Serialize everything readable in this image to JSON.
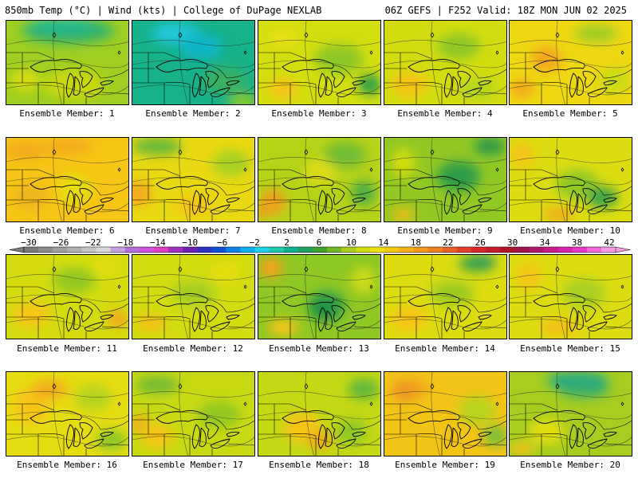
{
  "header": {
    "left": "850mb Temp (°C) | Wind (kts) | College of DuPage NEXLAB",
    "right": "06Z GEFS | F252 Valid: 18Z MON JUN 02 2025"
  },
  "label_prefix": "Ensemble Member: ",
  "members": [
    {
      "n": "1",
      "base": "#9ecf22",
      "blobs": [
        [
          "#36b36b",
          0.5,
          0.12,
          0.75,
          0.3
        ],
        [
          "#1fb79a",
          0.45,
          0.05,
          0.55,
          0.15
        ],
        [
          "#c9d810",
          0.55,
          0.75,
          0.5,
          0.35
        ],
        [
          "#d8dc10",
          0.15,
          0.7,
          0.25,
          0.25
        ]
      ]
    },
    {
      "n": "2",
      "base": "#17b18a",
      "blobs": [
        [
          "#23c7d9",
          0.35,
          0.15,
          0.4,
          0.25
        ],
        [
          "#10b6c8",
          0.55,
          0.3,
          0.35,
          0.3
        ],
        [
          "#3ab060",
          0.75,
          0.7,
          0.35,
          0.3
        ],
        [
          "#8cca28",
          0.9,
          0.95,
          0.25,
          0.2
        ]
      ]
    },
    {
      "n": "3",
      "base": "#d3de0f",
      "blobs": [
        [
          "#8ec826",
          0.65,
          0.45,
          0.4,
          0.35
        ],
        [
          "#2e9f4a",
          0.9,
          0.75,
          0.18,
          0.25
        ],
        [
          "#f6c514",
          0.2,
          0.8,
          0.25,
          0.25
        ],
        [
          "#e9e012",
          0.2,
          0.2,
          0.25,
          0.2
        ]
      ]
    },
    {
      "n": "4",
      "base": "#d2dc10",
      "blobs": [
        [
          "#8ec826",
          0.6,
          0.3,
          0.35,
          0.3
        ],
        [
          "#f6c514",
          0.2,
          0.75,
          0.3,
          0.3
        ],
        [
          "#b6d51a",
          0.75,
          0.8,
          0.3,
          0.25
        ]
      ]
    },
    {
      "n": "5",
      "base": "#eed812",
      "blobs": [
        [
          "#f3a81e",
          0.3,
          0.45,
          0.25,
          0.3
        ],
        [
          "#f2a61d",
          0.1,
          0.8,
          0.2,
          0.2
        ],
        [
          "#9ccc26",
          0.7,
          0.15,
          0.35,
          0.2
        ],
        [
          "#c8da14",
          0.85,
          0.7,
          0.25,
          0.3
        ]
      ]
    },
    {
      "n": "6",
      "base": "#f6c515",
      "blobs": [
        [
          "#f3a81d",
          0.15,
          0.15,
          0.35,
          0.2
        ],
        [
          "#f2a41e",
          0.5,
          0.1,
          0.4,
          0.15
        ],
        [
          "#e6dc11",
          0.55,
          0.6,
          0.3,
          0.35
        ],
        [
          "#f0b51a",
          0.2,
          0.7,
          0.3,
          0.3
        ]
      ]
    },
    {
      "n": "7",
      "base": "#e8d912",
      "blobs": [
        [
          "#62b73c",
          0.2,
          0.1,
          0.4,
          0.2
        ],
        [
          "#f3a91e",
          0.05,
          0.65,
          0.2,
          0.3
        ],
        [
          "#a6cf22",
          0.8,
          0.3,
          0.3,
          0.3
        ],
        [
          "#f6c515",
          0.5,
          0.8,
          0.3,
          0.25
        ]
      ]
    },
    {
      "n": "8",
      "base": "#b6d318",
      "blobs": [
        [
          "#f2a01f",
          0.12,
          0.75,
          0.2,
          0.3
        ],
        [
          "#ee9324",
          0.02,
          0.88,
          0.1,
          0.12
        ],
        [
          "#72bc35",
          0.7,
          0.2,
          0.35,
          0.3
        ],
        [
          "#4faf45",
          0.85,
          0.65,
          0.2,
          0.3
        ],
        [
          "#dcdc12",
          0.5,
          0.4,
          0.25,
          0.3
        ]
      ]
    },
    {
      "n": "9",
      "base": "#92c824",
      "blobs": [
        [
          "#2e9c48",
          0.6,
          0.45,
          0.35,
          0.35
        ],
        [
          "#2a9747",
          0.85,
          0.1,
          0.25,
          0.2
        ],
        [
          "#d2dc11",
          0.15,
          0.3,
          0.2,
          0.35
        ],
        [
          "#f4bd16",
          0.15,
          0.9,
          0.2,
          0.15
        ]
      ]
    },
    {
      "n": "10",
      "base": "#dcdc11",
      "blobs": [
        [
          "#8ec826",
          0.55,
          0.55,
          0.35,
          0.35
        ],
        [
          "#3ea44a",
          0.75,
          0.7,
          0.25,
          0.25
        ],
        [
          "#f4c416",
          0.1,
          0.2,
          0.2,
          0.3
        ],
        [
          "#f2a81d",
          0.4,
          0.9,
          0.25,
          0.15
        ]
      ]
    },
    {
      "n": "11",
      "base": "#d4dc10",
      "blobs": [
        [
          "#92c824",
          0.55,
          0.3,
          0.35,
          0.3
        ],
        [
          "#f6c515",
          0.2,
          0.7,
          0.3,
          0.3
        ],
        [
          "#f2a31e",
          0.9,
          0.75,
          0.15,
          0.2
        ],
        [
          "#e4dd11",
          0.8,
          0.15,
          0.2,
          0.2
        ]
      ]
    },
    {
      "n": "12",
      "base": "#d2dc11",
      "blobs": [
        [
          "#a4cd20",
          0.5,
          0.45,
          0.35,
          0.3
        ],
        [
          "#f4bd16",
          0.15,
          0.8,
          0.25,
          0.2
        ],
        [
          "#e6dd10",
          0.75,
          0.2,
          0.25,
          0.25
        ]
      ]
    },
    {
      "n": "13",
      "base": "#8fc825",
      "blobs": [
        [
          "#2e9c48",
          0.55,
          0.6,
          0.3,
          0.35
        ],
        [
          "#1f8f45",
          0.5,
          0.65,
          0.18,
          0.2
        ],
        [
          "#f2a21e",
          0.1,
          0.15,
          0.2,
          0.25
        ],
        [
          "#f6c515",
          0.2,
          0.85,
          0.25,
          0.2
        ],
        [
          "#cfdb12",
          0.85,
          0.3,
          0.2,
          0.3
        ]
      ]
    },
    {
      "n": "14",
      "base": "#dcdc11",
      "blobs": [
        [
          "#3aa44a",
          0.75,
          0.1,
          0.3,
          0.2
        ],
        [
          "#2c9a62",
          0.8,
          0.05,
          0.2,
          0.1
        ],
        [
          "#9ccb24",
          0.55,
          0.45,
          0.35,
          0.3
        ],
        [
          "#f6c515",
          0.2,
          0.75,
          0.3,
          0.3
        ]
      ]
    },
    {
      "n": "15",
      "base": "#dcdc11",
      "blobs": [
        [
          "#a8cf20",
          0.6,
          0.45,
          0.35,
          0.35
        ],
        [
          "#f6c515",
          0.15,
          0.25,
          0.2,
          0.3
        ],
        [
          "#f4c015",
          0.4,
          0.85,
          0.3,
          0.2
        ]
      ]
    },
    {
      "n": "16",
      "base": "#e6dc12",
      "blobs": [
        [
          "#f6c515",
          0.2,
          0.4,
          0.3,
          0.4
        ],
        [
          "#f2a81d",
          0.35,
          0.2,
          0.3,
          0.2
        ],
        [
          "#8ec826",
          0.85,
          0.8,
          0.25,
          0.25
        ],
        [
          "#b6d31a",
          0.7,
          0.3,
          0.3,
          0.3
        ]
      ]
    },
    {
      "n": "17",
      "base": "#c8d913",
      "blobs": [
        [
          "#6fba38",
          0.2,
          0.15,
          0.35,
          0.2
        ],
        [
          "#f6c515",
          0.2,
          0.75,
          0.25,
          0.3
        ],
        [
          "#f2a81d",
          0.05,
          0.6,
          0.12,
          0.2
        ],
        [
          "#92c824",
          0.7,
          0.5,
          0.35,
          0.3
        ]
      ]
    },
    {
      "n": "18",
      "base": "#c4d814",
      "blobs": [
        [
          "#62b63e",
          0.85,
          0.2,
          0.25,
          0.25
        ],
        [
          "#f6c515",
          0.35,
          0.65,
          0.3,
          0.35
        ],
        [
          "#f2a81d",
          0.5,
          0.8,
          0.2,
          0.2
        ],
        [
          "#8fc826",
          0.75,
          0.7,
          0.25,
          0.3
        ]
      ]
    },
    {
      "n": "19",
      "base": "#f2c416",
      "blobs": [
        [
          "#f1a01f",
          0.2,
          0.2,
          0.3,
          0.25
        ],
        [
          "#ec8d25",
          0.15,
          0.25,
          0.15,
          0.15
        ],
        [
          "#b8d41a",
          0.75,
          0.45,
          0.3,
          0.35
        ],
        [
          "#7bbf34",
          0.9,
          0.75,
          0.2,
          0.25
        ]
      ]
    },
    {
      "n": "20",
      "base": "#a6cd20",
      "blobs": [
        [
          "#1da98a",
          0.55,
          0.1,
          0.5,
          0.2
        ],
        [
          "#35ad70",
          0.6,
          0.2,
          0.4,
          0.2
        ],
        [
          "#e4dd10",
          0.3,
          0.7,
          0.3,
          0.3
        ],
        [
          "#f4c016",
          0.1,
          0.9,
          0.2,
          0.15
        ]
      ]
    }
  ],
  "colorbar": {
    "labels": [
      "−30",
      "−26",
      "−22",
      "−18",
      "−14",
      "−10",
      "−6",
      "−2",
      "2",
      "6",
      "10",
      "14",
      "18",
      "22",
      "26",
      "30",
      "34",
      "38",
      "42"
    ],
    "colors": [
      "#7a7a7a",
      "#8c8c8c",
      "#9e9e9e",
      "#b0b0b0",
      "#c4c4c4",
      "#d8d8d8",
      "#c8a0e0",
      "#b070d8",
      "#d050e0",
      "#e040c0",
      "#a030c0",
      "#7020b0",
      "#3030c0",
      "#1050d8",
      "#1080e8",
      "#10b0f0",
      "#20d0e8",
      "#20c8b0",
      "#10b090",
      "#20a060",
      "#40a030",
      "#70b828",
      "#a8cc20",
      "#d0dc10",
      "#f0e010",
      "#f6c814",
      "#f5b018",
      "#f2981e",
      "#ee8024",
      "#e8602a",
      "#e0402c",
      "#d82828",
      "#c81e2a",
      "#b01428",
      "#a0144a",
      "#b0186a",
      "#c81c8a",
      "#d824a8",
      "#e838c8",
      "#f068d8",
      "#f59ae0"
    ]
  }
}
